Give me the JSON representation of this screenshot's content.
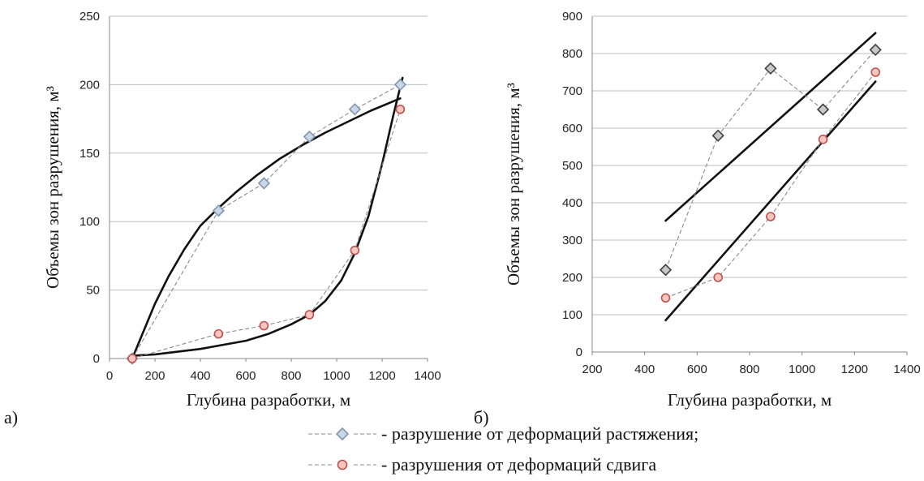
{
  "chart_data": [
    {
      "type": "scatter",
      "panel_label": "а)",
      "xlabel": "Глубина разработки, м",
      "ylabel": "Объемы зон разрушения, м³",
      "xlim": [
        0,
        1400
      ],
      "ylim": [
        0,
        250
      ],
      "xticks": [
        0,
        200,
        400,
        600,
        800,
        1000,
        1200,
        1400
      ],
      "yticks": [
        0,
        50,
        100,
        150,
        200,
        250
      ],
      "grid": "horizontal",
      "series": [
        {
          "key": "tension",
          "color": "#7f97b2",
          "fill": "#c9d6e6",
          "marker": "diamond",
          "x": [
            100,
            480,
            680,
            880,
            1080,
            1280
          ],
          "y": [
            0,
            108,
            128,
            162,
            182,
            200
          ]
        },
        {
          "key": "shear",
          "color": "#c0504d",
          "fill": "#f4c6bd",
          "marker": "circle",
          "x": [
            100,
            480,
            680,
            880,
            1080,
            1280
          ],
          "y": [
            0,
            18,
            24,
            32,
            79,
            182
          ]
        }
      ],
      "trendlines": [
        {
          "key": "tension_fit",
          "color": "#111111",
          "x": [
            100,
            150,
            200,
            260,
            330,
            400,
            480,
            560,
            650,
            750,
            850,
            950,
            1050,
            1150,
            1280
          ],
          "y": [
            0,
            20,
            40,
            60,
            80,
            97,
            110,
            122,
            134,
            146,
            156,
            165,
            173,
            181,
            190
          ]
        },
        {
          "key": "shear_fit",
          "color": "#111111",
          "x": [
            100,
            200,
            300,
            400,
            500,
            600,
            700,
            800,
            880,
            950,
            1020,
            1080,
            1140,
            1200,
            1250,
            1290
          ],
          "y": [
            2,
            3,
            5,
            7,
            10,
            13,
            18,
            25,
            32,
            42,
            57,
            77,
            104,
            142,
            178,
            205
          ]
        }
      ]
    },
    {
      "type": "scatter",
      "panel_label": "б)",
      "xlabel": "Глубина разработки, м",
      "ylabel": "Объемы зон разрушения, м³",
      "xlim": [
        200,
        1400
      ],
      "ylim": [
        0,
        900
      ],
      "xticks": [
        200,
        400,
        600,
        800,
        1000,
        1200,
        1400
      ],
      "yticks": [
        0,
        100,
        200,
        300,
        400,
        500,
        600,
        700,
        800,
        900
      ],
      "grid": "horizontal",
      "series": [
        {
          "key": "tension",
          "color": "#404040",
          "fill": "#c8c8c8",
          "marker": "diamond",
          "x": [
            480,
            680,
            880,
            1080,
            1280
          ],
          "y": [
            220,
            580,
            760,
            650,
            810
          ]
        },
        {
          "key": "shear",
          "color": "#c0504d",
          "fill": "#f4c6bd",
          "marker": "circle",
          "x": [
            480,
            680,
            880,
            1080,
            1280
          ],
          "y": [
            145,
            200,
            363,
            570,
            750
          ]
        }
      ],
      "trendlines": [
        {
          "key": "tension_fit",
          "color": "#111111",
          "x": [
            480,
            1280
          ],
          "y": [
            352,
            855
          ]
        },
        {
          "key": "shear_fit",
          "color": "#111111",
          "x": [
            480,
            1280
          ],
          "y": [
            85,
            725
          ]
        }
      ]
    }
  ],
  "legend": {
    "items": [
      {
        "series_key": "tension",
        "text": "- разрушение от деформаций растяжения;",
        "color": "#7f97b2",
        "fill": "#c9d6e6",
        "marker": "diamond"
      },
      {
        "series_key": "shear",
        "text": "- разрушения от деформаций сдвига",
        "color": "#c0504d",
        "fill": "#f4c6bd",
        "marker": "circle"
      }
    ]
  }
}
